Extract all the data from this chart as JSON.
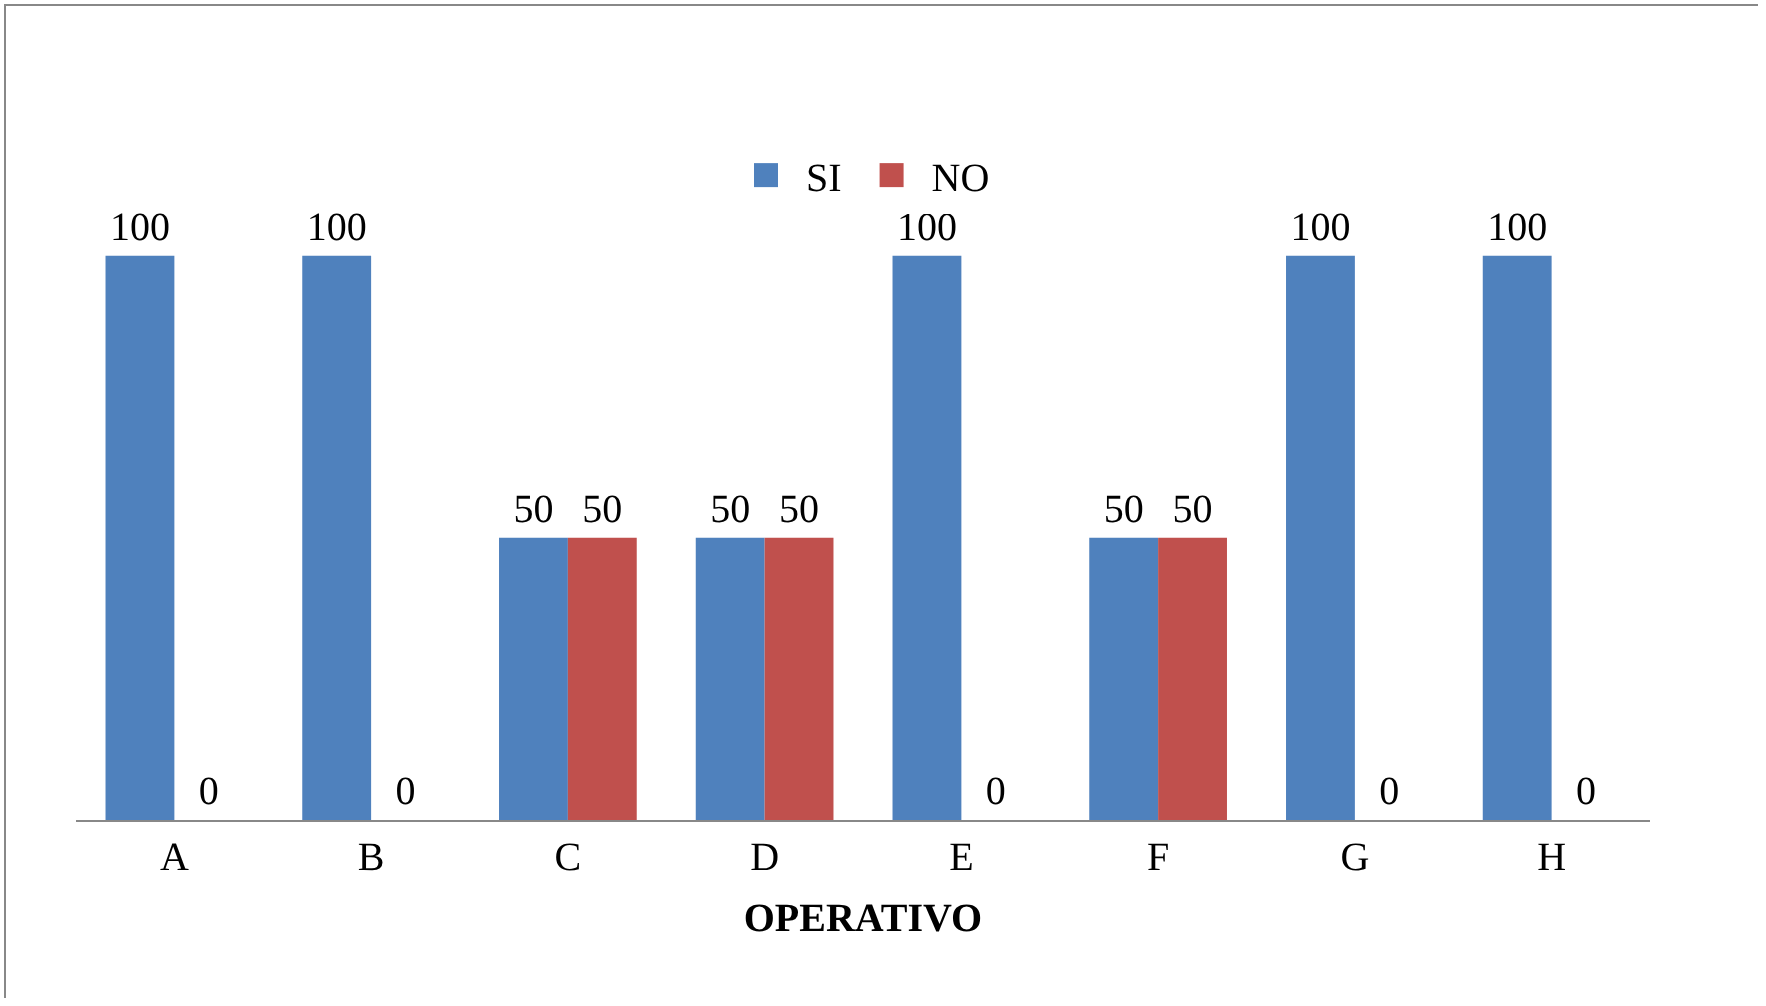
{
  "chart_data": {
    "type": "bar",
    "xlabel": "OPERATIVO",
    "categories": [
      "A",
      "B",
      "C",
      "D",
      "E",
      "F",
      "G",
      "H"
    ],
    "series": [
      {
        "name": "SI",
        "color": "#4f81bd",
        "values": [
          100,
          100,
          50,
          50,
          100,
          50,
          100,
          100
        ]
      },
      {
        "name": "NO",
        "color": "#c0504d",
        "values": [
          0,
          0,
          50,
          50,
          0,
          50,
          0,
          0
        ]
      }
    ],
    "data_labels": true,
    "legend": "top",
    "tick_labels": "x"
  }
}
